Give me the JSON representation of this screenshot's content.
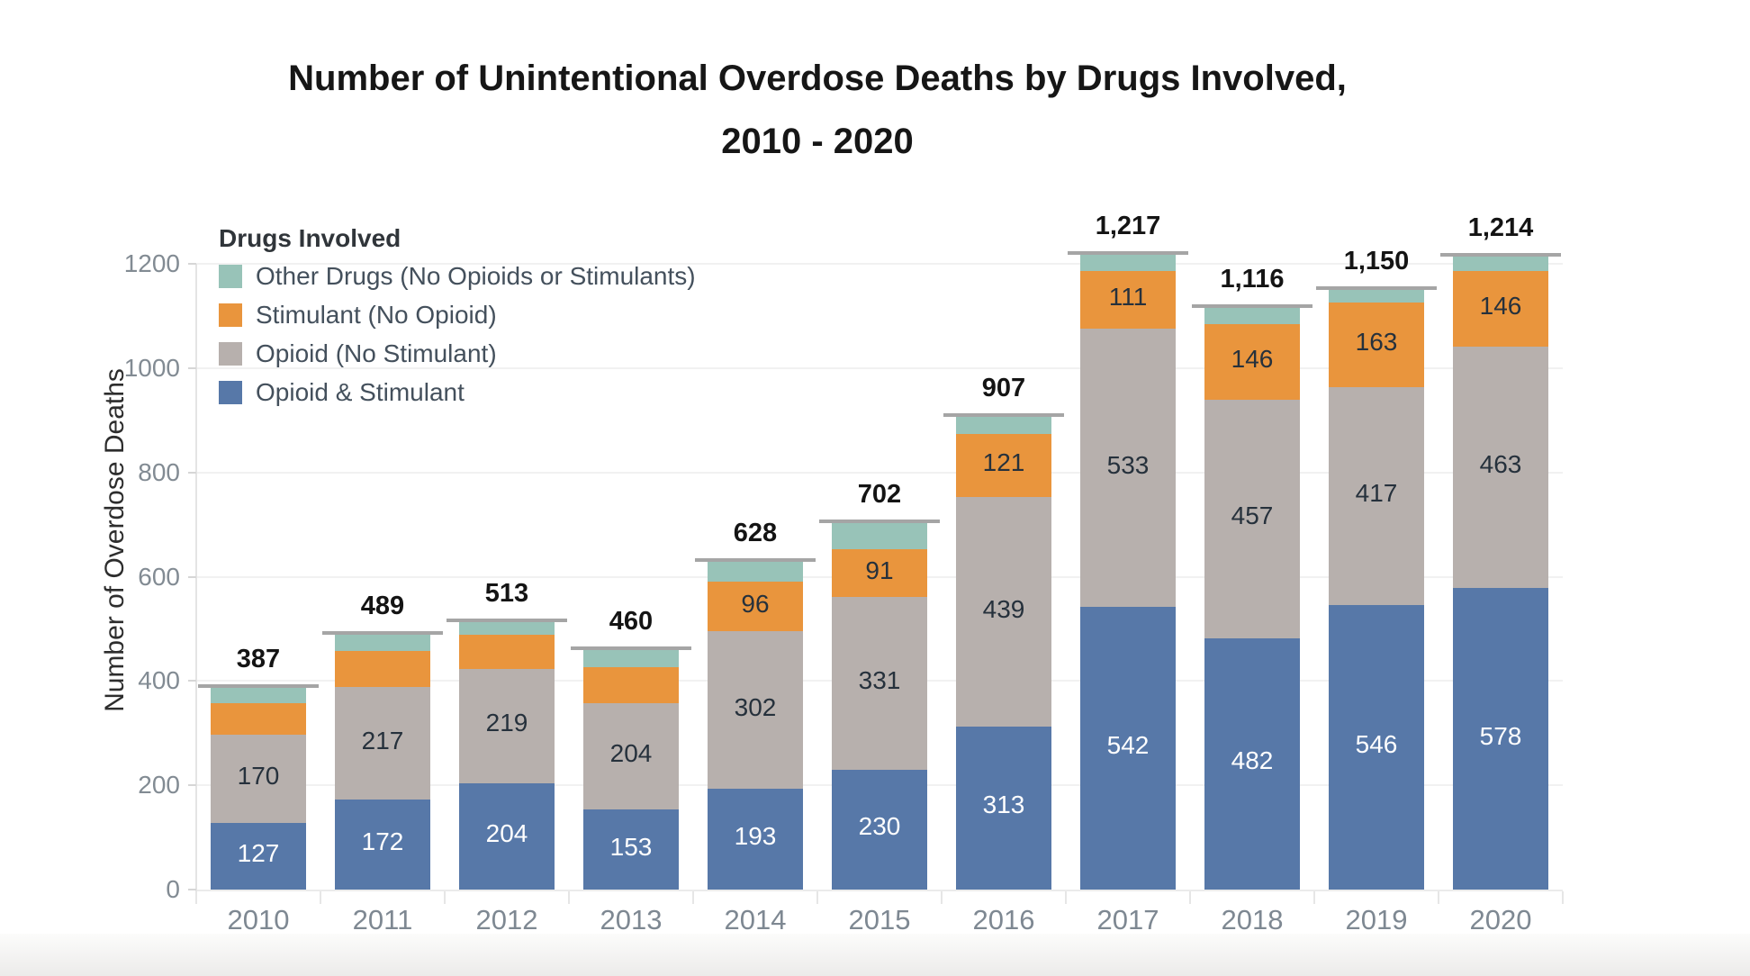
{
  "title": {
    "line1": "Number of Unintentional Overdose Deaths by Drugs Involved,",
    "line2": "2010 - 2020"
  },
  "axes": {
    "y_title": "Number of Overdose Deaths",
    "y_ticks": [
      0,
      200,
      400,
      600,
      800,
      1000,
      1200
    ],
    "x_labels": [
      "2010",
      "2011",
      "2012",
      "2013",
      "2014",
      "2015",
      "2016",
      "2017",
      "2018",
      "2019",
      "2020"
    ]
  },
  "legend": {
    "title": "Drugs Involved",
    "items": [
      {
        "label": "Other Drugs (No Opioids or Stimulants)",
        "color": "#98c3b8"
      },
      {
        "label": "Stimulant (No Opioid)",
        "color": "#e9953d"
      },
      {
        "label": "Opioid (No Stimulant)",
        "color": "#b7b0ad"
      },
      {
        "label": "Opioid & Stimulant",
        "color": "#5778a8"
      }
    ]
  },
  "chart_data": {
    "type": "bar",
    "stacked": true,
    "title": "Number of Unintentional Overdose Deaths by Drugs Involved, 2010 - 2020",
    "xlabel": "",
    "ylabel": "Number of Overdose Deaths",
    "ylim": [
      0,
      1200
    ],
    "grid": "horizontal",
    "legend_position": "top-left-inside",
    "categories": [
      "2010",
      "2011",
      "2012",
      "2013",
      "2014",
      "2015",
      "2016",
      "2017",
      "2018",
      "2019",
      "2020"
    ],
    "series": [
      {
        "name": "Opioid & Stimulant",
        "color": "#5778a8",
        "label_color": "#ffffff",
        "values": [
          127,
          172,
          204,
          153,
          193,
          230,
          313,
          542,
          482,
          546,
          578
        ],
        "labels": [
          "127",
          "172",
          "204",
          "153",
          "193",
          "230",
          "313",
          "542",
          "482",
          "546",
          "578"
        ]
      },
      {
        "name": "Opioid (No Stimulant)",
        "color": "#b7b0ad",
        "label_color": "#26313c",
        "values": [
          170,
          217,
          219,
          204,
          302,
          331,
          439,
          533,
          457,
          417,
          463
        ],
        "labels": [
          "170",
          "217",
          "219",
          "204",
          "302",
          "331",
          "439",
          "533",
          "457",
          "417",
          "463"
        ]
      },
      {
        "name": "Stimulant (No Opioid)",
        "color": "#e9953d",
        "label_color": "#26313c",
        "values": [
          60,
          69,
          65,
          70,
          96,
          91,
          121,
          111,
          146,
          163,
          146
        ],
        "labels": [
          "",
          "",
          "",
          "",
          "96",
          "91",
          "121",
          "111",
          "146",
          "163",
          "146"
        ]
      },
      {
        "name": "Other Drugs (No Opioids or Stimulants)",
        "color": "#98c3b8",
        "label_color": "#26313c",
        "values": [
          30,
          31,
          25,
          33,
          37,
          50,
          34,
          31,
          31,
          24,
          27
        ],
        "labels": [
          "",
          "",
          "",
          "",
          "",
          "",
          "",
          "",
          "",
          "",
          ""
        ]
      }
    ],
    "totals": [
      "387",
      "489",
      "513",
      "460",
      "628",
      "702",
      "907",
      "1,217",
      "1,116",
      "1,150",
      "1,214"
    ]
  }
}
